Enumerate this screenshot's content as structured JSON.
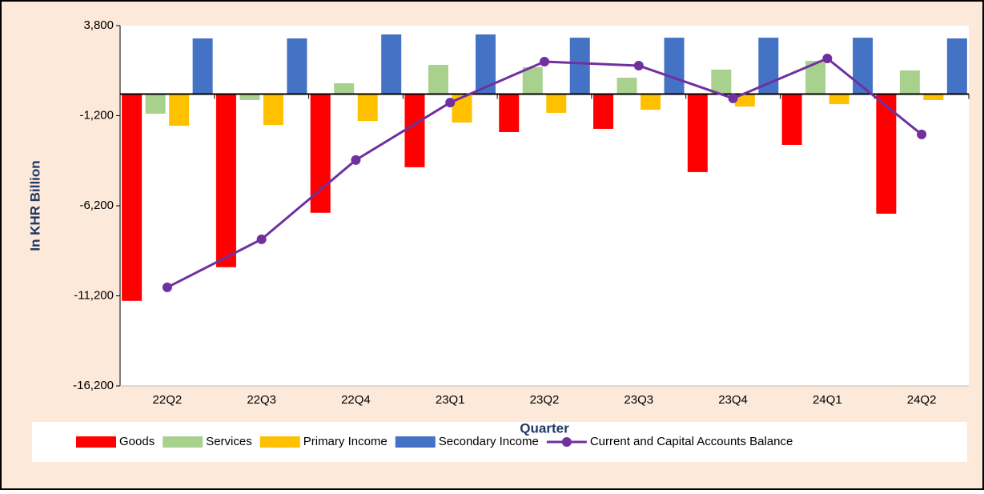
{
  "chart_data": {
    "type": "bar",
    "y_label": "In KHR Billion",
    "x_label": "Quarter",
    "categories": [
      "22Q2",
      "22Q3",
      "22Q4",
      "23Q1",
      "23Q2",
      "23Q3",
      "23Q4",
      "24Q1",
      "24Q2"
    ],
    "series": [
      {
        "name": "Goods",
        "color": "#ff0000",
        "type": "bar",
        "values": [
          -11480,
          -9610,
          -6590,
          -4060,
          -2110,
          -1930,
          -4330,
          -2820,
          -6640
        ]
      },
      {
        "name": "Services",
        "color": "#a9d18e",
        "type": "bar",
        "values": [
          -1090,
          -330,
          600,
          1620,
          1490,
          910,
          1360,
          1840,
          1310
        ]
      },
      {
        "name": "Primary Income",
        "color": "#ffc000",
        "type": "bar",
        "values": [
          -1760,
          -1710,
          -1490,
          -1580,
          -1040,
          -870,
          -690,
          -560,
          -330
        ]
      },
      {
        "name": "Secondary Income",
        "color": "#4472c4",
        "type": "bar",
        "values": [
          3090,
          3090,
          3310,
          3310,
          3130,
          3130,
          3130,
          3130,
          3090
        ]
      },
      {
        "name": "Current and Capital Accounts Balance",
        "color": "#7030a0",
        "type": "line",
        "values": [
          -10730,
          -8060,
          -3660,
          -470,
          1800,
          1580,
          -240,
          1980,
          -2240
        ]
      }
    ],
    "ylim": [
      -16200,
      3800
    ],
    "yticks": [
      {
        "value": 3800,
        "label": "3,800"
      },
      {
        "value": -1200,
        "label": "-1,200"
      },
      {
        "value": -6200,
        "label": "-6,200"
      },
      {
        "value": -11200,
        "label": "-11,200"
      },
      {
        "value": -16200,
        "label": "-16,200"
      }
    ],
    "legend": "bottom"
  }
}
